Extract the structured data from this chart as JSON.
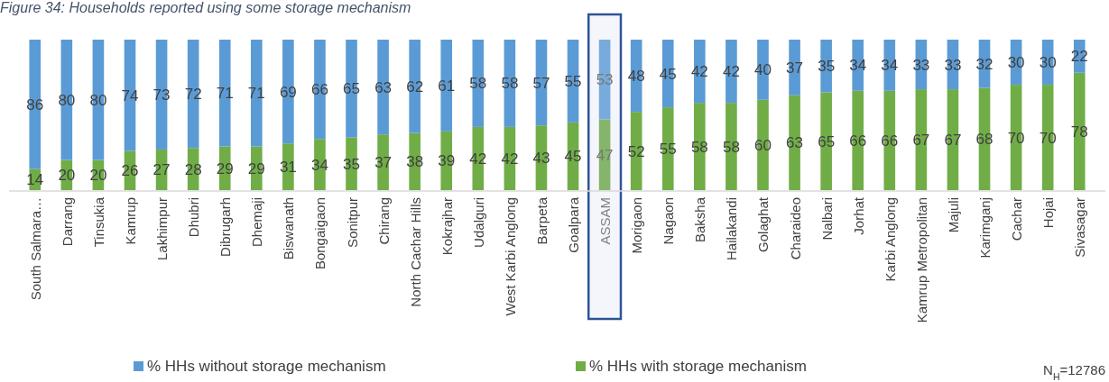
{
  "chart_data": {
    "type": "bar",
    "stacked": true,
    "title": "Figure 34: Households reported using some storage mechanism",
    "categories": [
      "South Salmara…",
      "Darrang",
      "Tinsukia",
      "Kamrup",
      "Lakhimpur",
      "Dhubri",
      "Dibrugarh",
      "Dhemaji",
      "Biswanath",
      "Bongaigaon",
      "Sonitpur",
      "Chirang",
      "North Cachar Hills",
      "Kokrajhar",
      "Udalguri",
      "West Karbi Anglong",
      "Barpeta",
      "Goalpara",
      "ASSAM",
      "Morigaon",
      "Nagaon",
      "Baksha",
      "Hailakandi",
      "Golaghat",
      "Charaideo",
      "Nalbari",
      "Jorhat",
      "Karbi Anglong",
      "Kamrup Metropolitan",
      "Majuli",
      "Karimganj",
      "Cachar",
      "Hojai",
      "Sivasagar"
    ],
    "series": [
      {
        "name": "% HHs with storage mechanism",
        "color": "#70ad47",
        "colors": [
          "#70ad47",
          "#70ad47",
          "#70ad47",
          "#70ad47",
          "#70ad47",
          "#70ad47",
          "#70ad47",
          "#70ad47",
          "#70ad47",
          "#70ad47",
          "#70ad47",
          "#70ad47",
          "#70ad47",
          "#70ad47",
          "#70ad47",
          "#70ad47",
          "#70ad47",
          "#70ad47",
          "#85b46b",
          "#70ad47",
          "#70ad47",
          "#70ad47",
          "#70ad47",
          "#70ad47",
          "#70ad47",
          "#70ad47",
          "#70ad47",
          "#70ad47",
          "#70ad47",
          "#70ad47",
          "#70ad47",
          "#70ad47",
          "#70ad47",
          "#70ad47"
        ],
        "values": [
          14,
          20,
          20,
          26,
          27,
          28,
          29,
          29,
          31,
          34,
          35,
          37,
          38,
          39,
          42,
          42,
          43,
          45,
          47,
          52,
          55,
          58,
          58,
          60,
          63,
          65,
          66,
          66,
          67,
          67,
          68,
          70,
          70,
          78
        ]
      },
      {
        "name": "% HHs without storage mechanism",
        "color": "#5b9bd5",
        "colors": [
          "#5b9bd5",
          "#5b9bd5",
          "#5b9bd5",
          "#5b9bd5",
          "#5b9bd5",
          "#5b9bd5",
          "#5b9bd5",
          "#5b9bd5",
          "#5b9bd5",
          "#5b9bd5",
          "#5b9bd5",
          "#5b9bd5",
          "#5b9bd5",
          "#5b9bd5",
          "#5b9bd5",
          "#5b9bd5",
          "#5b9bd5",
          "#5b9bd5",
          "#78abdb",
          "#5b9bd5",
          "#5b9bd5",
          "#5b9bd5",
          "#5b9bd5",
          "#5b9bd5",
          "#5b9bd5",
          "#5b9bd5",
          "#5b9bd5",
          "#5b9bd5",
          "#5b9bd5",
          "#5b9bd5",
          "#5b9bd5",
          "#5b9bd5",
          "#5b9bd5",
          "#5b9bd5"
        ],
        "values": [
          86,
          80,
          80,
          74,
          73,
          72,
          71,
          71,
          69,
          66,
          65,
          63,
          62,
          61,
          58,
          58,
          57,
          55,
          53,
          48,
          45,
          42,
          42,
          40,
          37,
          35,
          34,
          34,
          33,
          33,
          32,
          30,
          30,
          22
        ]
      }
    ],
    "bands": [
      {
        "axis": "x",
        "from": "ASSAM",
        "to": "ASSAM",
        "color": "#f4f6fb"
      }
    ],
    "data_labels": true,
    "legend": "bottom",
    "annotations": [
      "N$_{H}$=12786"
    ]
  }
}
